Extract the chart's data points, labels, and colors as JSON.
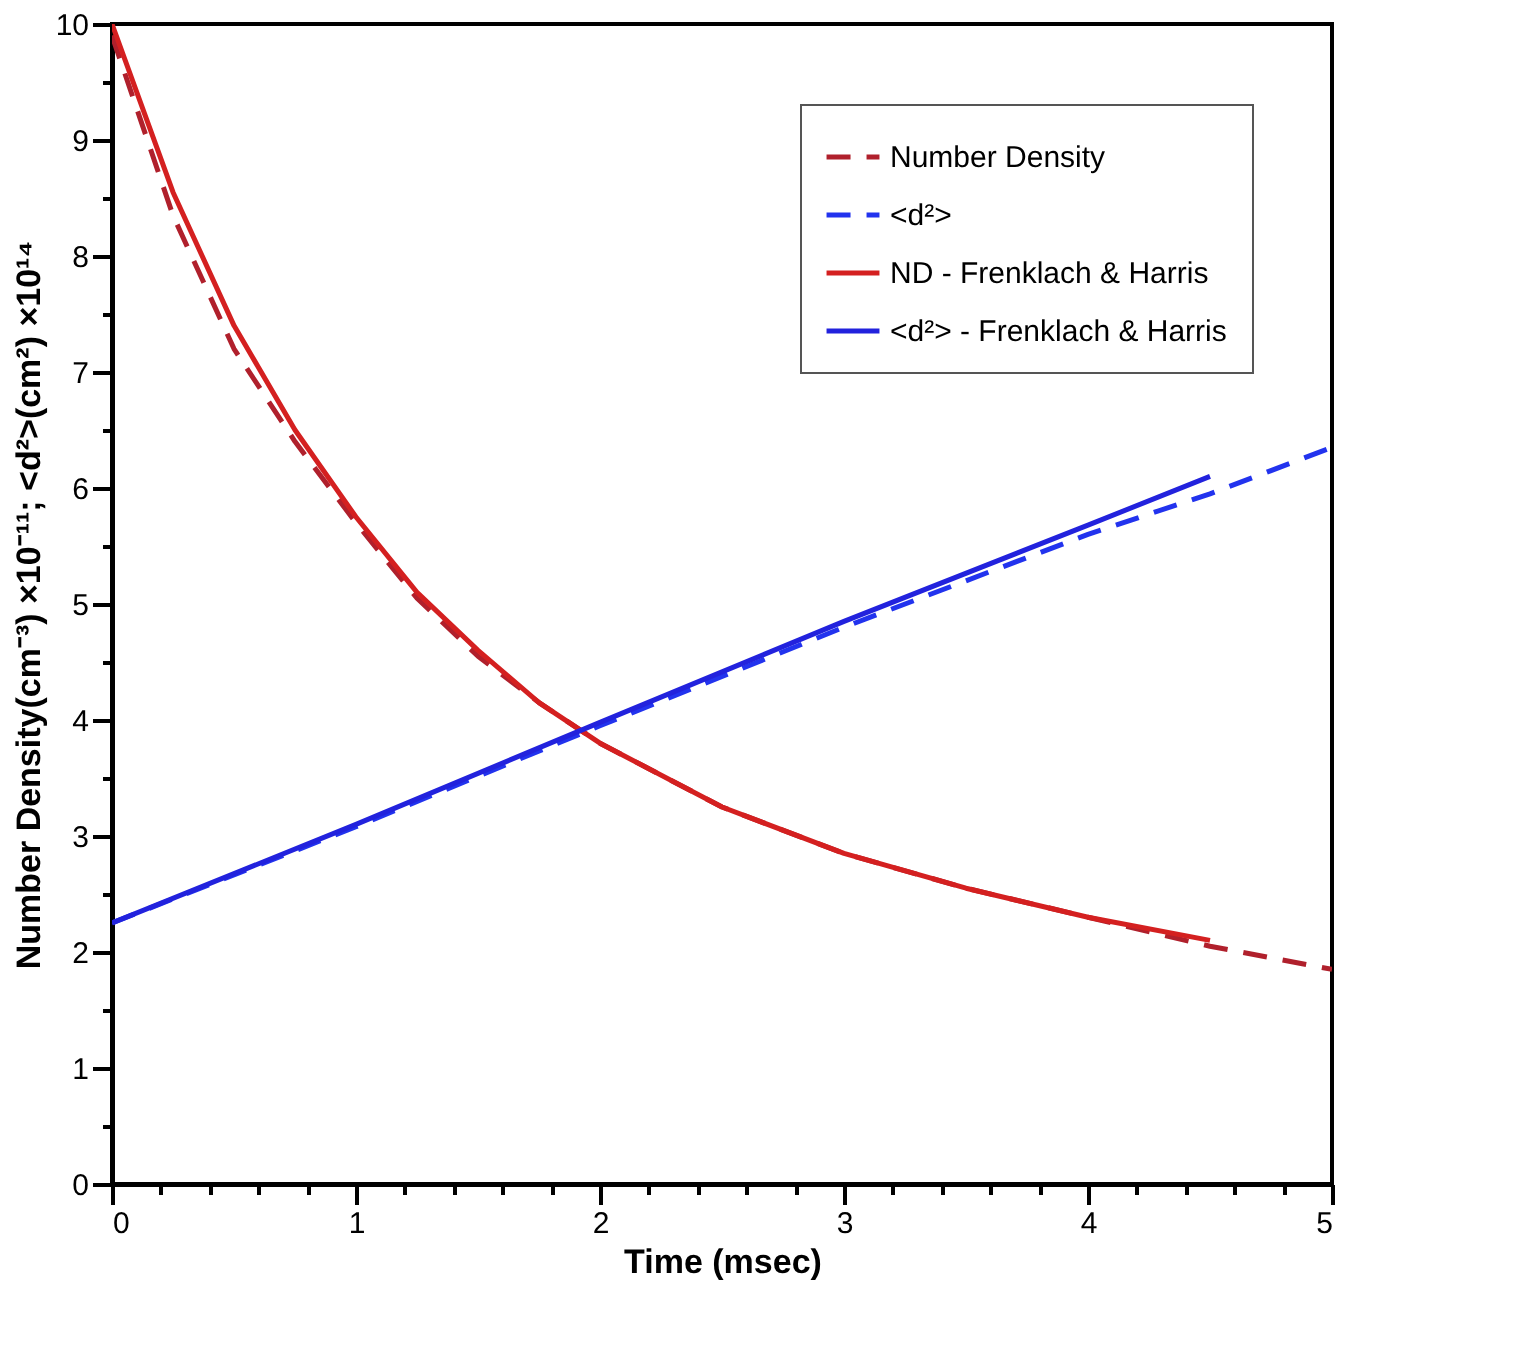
{
  "chart_data": {
    "type": "line",
    "xlabel": "Time (msec)",
    "ylabel": "Number Density(cm⁻³) ×10⁻¹¹; <d²>(cm²) ×10¹⁴",
    "xlim": [
      0,
      5
    ],
    "ylim": [
      0,
      10
    ],
    "xticks": [
      0,
      {
        "value": 0.2,
        "label": null
      },
      {
        "value": 0.4,
        "label": null
      },
      {
        "value": 0.6,
        "label": null
      },
      {
        "value": 0.8,
        "label": null
      },
      1,
      {
        "value": 1.2,
        "label": null
      },
      {
        "value": 1.4,
        "label": null
      },
      {
        "value": 1.6,
        "label": null
      },
      {
        "value": 1.8,
        "label": null
      },
      2,
      {
        "value": 2.2,
        "label": null
      },
      {
        "value": 2.4,
        "label": null
      },
      {
        "value": 2.6,
        "label": null
      },
      {
        "value": 2.8,
        "label": null
      },
      3,
      {
        "value": 3.2,
        "label": null
      },
      {
        "value": 3.4,
        "label": null
      },
      {
        "value": 3.6,
        "label": null
      },
      {
        "value": 3.8,
        "label": null
      },
      4,
      {
        "value": 4.2,
        "label": null
      },
      {
        "value": 4.4,
        "label": null
      },
      {
        "value": 4.6,
        "label": null
      },
      {
        "value": 4.8,
        "label": null
      },
      5
    ],
    "yticks": [
      0,
      {
        "value": 0.5,
        "label": null
      },
      1,
      {
        "value": 1.5,
        "label": null
      },
      2,
      {
        "value": 2.5,
        "label": null
      },
      3,
      {
        "value": 3.5,
        "label": null
      },
      4,
      {
        "value": 4.5,
        "label": null
      },
      5,
      {
        "value": 5.5,
        "label": null
      },
      6,
      {
        "value": 6.5,
        "label": null
      },
      7,
      {
        "value": 7.5,
        "label": null
      },
      8,
      {
        "value": 8.5,
        "label": null
      },
      9,
      {
        "value": 9.5,
        "label": null
      },
      10
    ],
    "grid": false,
    "legend": "top right",
    "series": [
      {
        "name": "Number Density",
        "color": "#b0202c",
        "line_style": "dashed",
        "x": [
          0,
          0.25,
          0.5,
          0.75,
          1,
          1.25,
          1.5,
          1.75,
          2,
          2.5,
          3,
          3.5,
          4,
          4.5,
          5
        ],
        "values": [
          9.9,
          8.35,
          7.2,
          6.4,
          5.7,
          5.05,
          4.55,
          4.15,
          3.8,
          3.25,
          2.85,
          2.55,
          2.3,
          2.05,
          1.85
        ]
      },
      {
        "name": "<d²>",
        "color": "#2233ee",
        "line_style": "dashed",
        "x": [
          0,
          1,
          2,
          3,
          4,
          4.5,
          5
        ],
        "values": [
          2.25,
          3.08,
          3.95,
          4.8,
          5.6,
          5.95,
          6.35
        ]
      },
      {
        "name": "ND - Frenklach & Harris",
        "color": "#d42020",
        "line_style": "solid",
        "x": [
          0,
          0.25,
          0.5,
          0.75,
          1,
          1.25,
          1.5,
          1.75,
          2,
          2.5,
          3,
          3.5,
          4,
          4.5
        ],
        "values": [
          10,
          8.55,
          7.4,
          6.5,
          5.75,
          5.1,
          4.6,
          4.15,
          3.8,
          3.25,
          2.85,
          2.55,
          2.3,
          2.1
        ]
      },
      {
        "name": "<d²> - Frenklach & Harris",
        "color": "#2222dd",
        "line_style": "solid",
        "x": [
          0,
          1,
          2,
          3,
          4,
          4.5
        ],
        "values": [
          2.25,
          3.1,
          3.98,
          4.85,
          5.68,
          6.1
        ]
      }
    ]
  }
}
